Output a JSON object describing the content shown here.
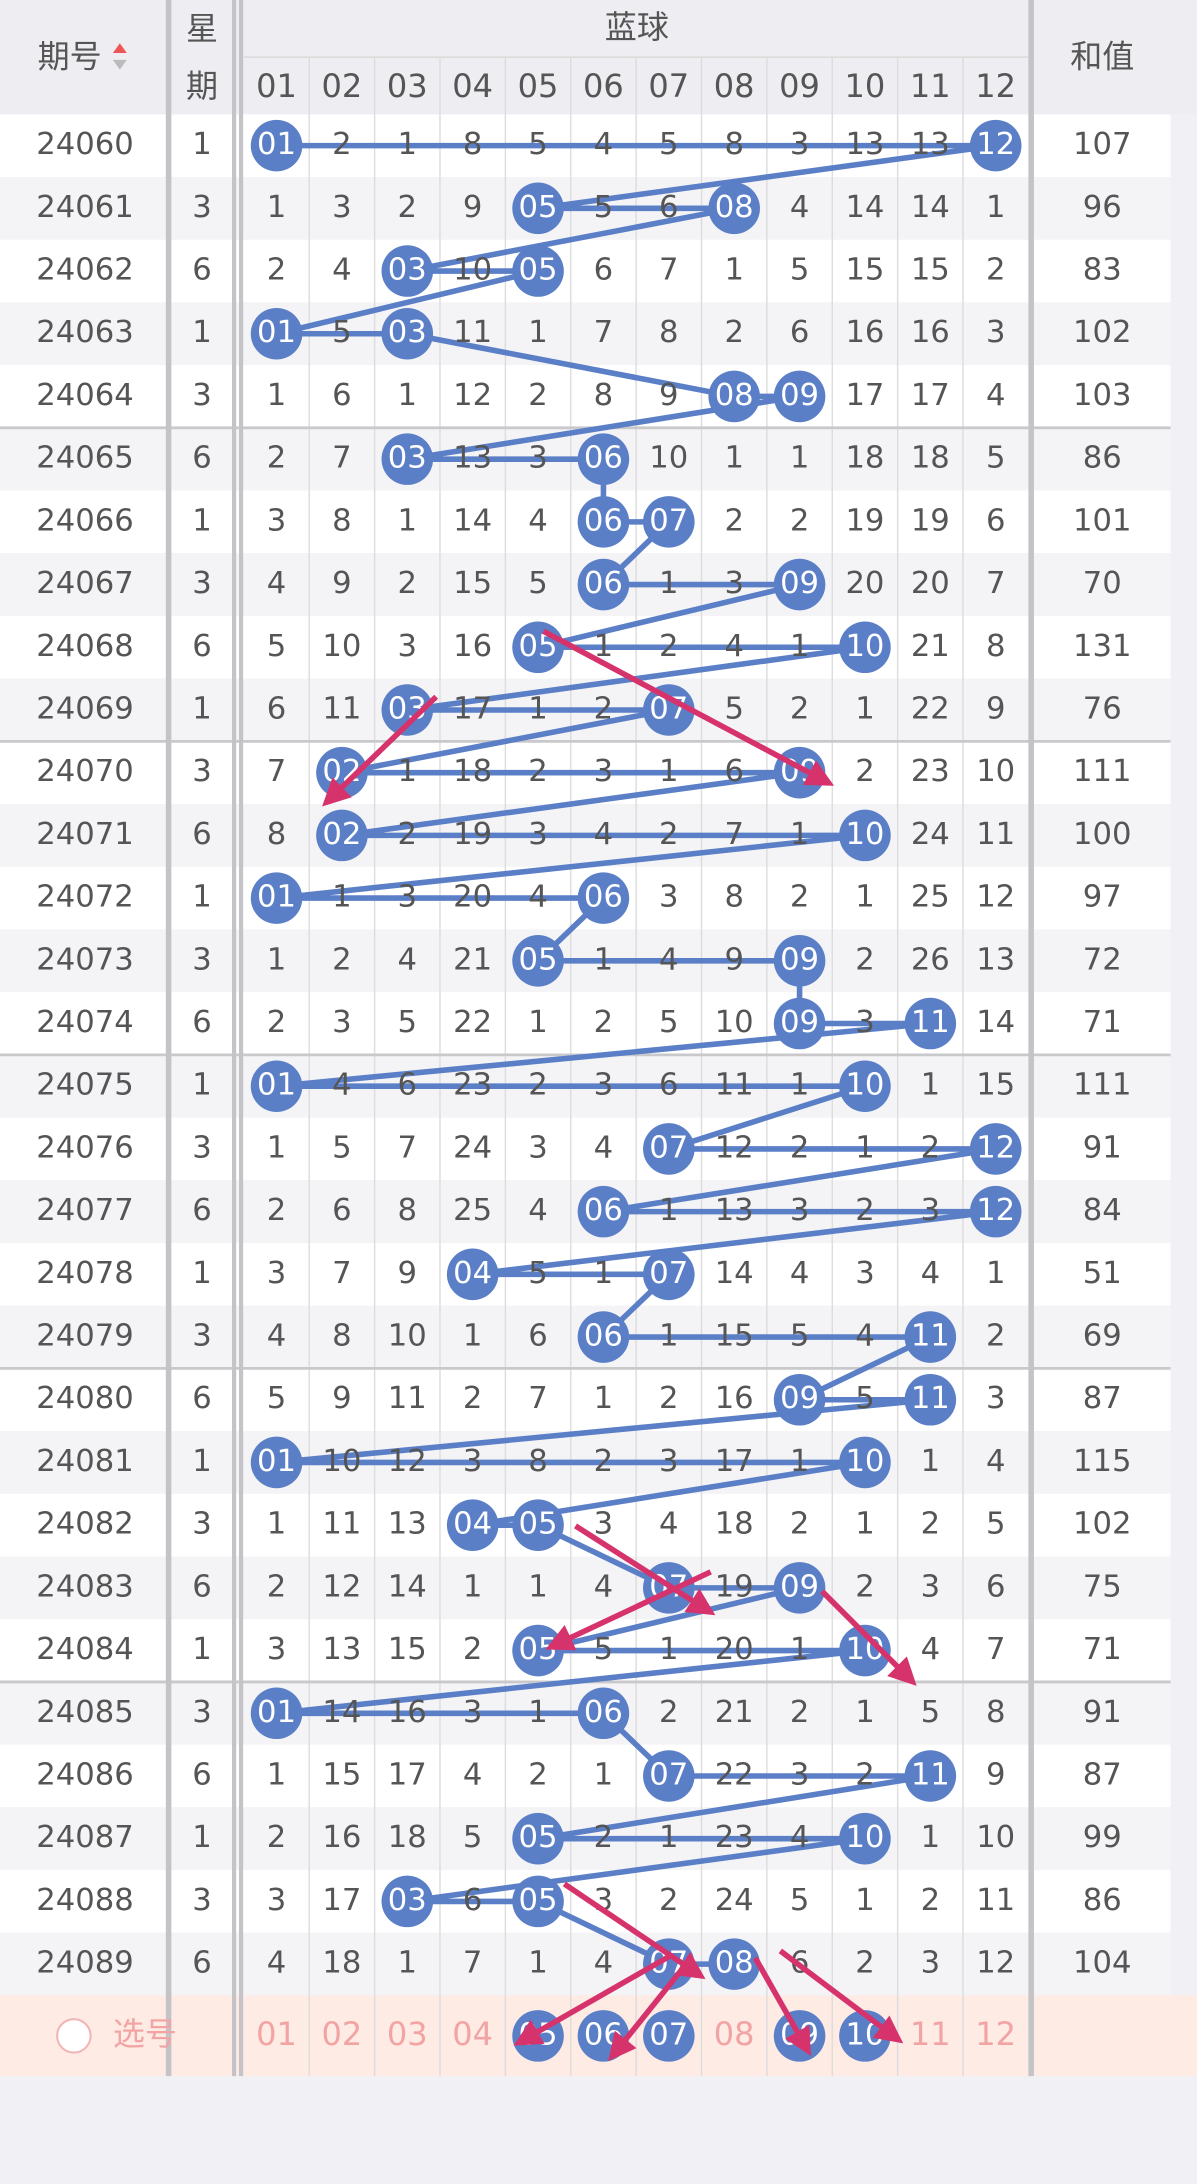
{
  "header": {
    "period": "期号",
    "weekday": [
      "星",
      "期"
    ],
    "blue": "蓝球",
    "sum": "和值",
    "columns": [
      "01",
      "02",
      "03",
      "04",
      "05",
      "06",
      "07",
      "08",
      "09",
      "10",
      "11",
      "12"
    ]
  },
  "rows": [
    {
      "period": "24060",
      "weekday": "1",
      "cells": [
        "01",
        "2",
        "1",
        "8",
        "5",
        "4",
        "5",
        "8",
        "3",
        "13",
        "13",
        "12"
      ],
      "hit": [
        true,
        false,
        false,
        false,
        false,
        false,
        false,
        false,
        false,
        false,
        false,
        true
      ],
      "sum": "107"
    },
    {
      "period": "24061",
      "weekday": "3",
      "cells": [
        "1",
        "3",
        "2",
        "9",
        "05",
        "5",
        "6",
        "08",
        "4",
        "14",
        "14",
        "1"
      ],
      "hit": [
        false,
        false,
        false,
        false,
        true,
        false,
        false,
        true,
        false,
        false,
        false,
        false
      ],
      "sum": "96"
    },
    {
      "period": "24062",
      "weekday": "6",
      "cells": [
        "2",
        "4",
        "03",
        "10",
        "05",
        "6",
        "7",
        "1",
        "5",
        "15",
        "15",
        "2"
      ],
      "hit": [
        false,
        false,
        true,
        false,
        true,
        false,
        false,
        false,
        false,
        false,
        false,
        false
      ],
      "sum": "83"
    },
    {
      "period": "24063",
      "weekday": "1",
      "cells": [
        "01",
        "5",
        "03",
        "11",
        "1",
        "7",
        "8",
        "2",
        "6",
        "16",
        "16",
        "3"
      ],
      "hit": [
        true,
        false,
        true,
        false,
        false,
        false,
        false,
        false,
        false,
        false,
        false,
        false
      ],
      "sum": "102"
    },
    {
      "period": "24064",
      "weekday": "3",
      "cells": [
        "1",
        "6",
        "1",
        "12",
        "2",
        "8",
        "9",
        "08",
        "09",
        "17",
        "17",
        "4"
      ],
      "hit": [
        false,
        false,
        false,
        false,
        false,
        false,
        false,
        true,
        true,
        false,
        false,
        false
      ],
      "sum": "103"
    },
    {
      "period": "24065",
      "weekday": "6",
      "cells": [
        "2",
        "7",
        "03",
        "13",
        "3",
        "06",
        "10",
        "1",
        "1",
        "18",
        "18",
        "5"
      ],
      "hit": [
        false,
        false,
        true,
        false,
        false,
        true,
        false,
        false,
        false,
        false,
        false,
        false
      ],
      "sum": "86"
    },
    {
      "period": "24066",
      "weekday": "1",
      "cells": [
        "3",
        "8",
        "1",
        "14",
        "4",
        "06",
        "07",
        "2",
        "2",
        "19",
        "19",
        "6"
      ],
      "hit": [
        false,
        false,
        false,
        false,
        false,
        true,
        true,
        false,
        false,
        false,
        false,
        false
      ],
      "sum": "101"
    },
    {
      "period": "24067",
      "weekday": "3",
      "cells": [
        "4",
        "9",
        "2",
        "15",
        "5",
        "06",
        "1",
        "3",
        "09",
        "20",
        "20",
        "7"
      ],
      "hit": [
        false,
        false,
        false,
        false,
        false,
        true,
        false,
        false,
        true,
        false,
        false,
        false
      ],
      "sum": "70"
    },
    {
      "period": "24068",
      "weekday": "6",
      "cells": [
        "5",
        "10",
        "3",
        "16",
        "05",
        "1",
        "2",
        "4",
        "1",
        "10",
        "21",
        "8"
      ],
      "hit": [
        false,
        false,
        false,
        false,
        true,
        false,
        false,
        false,
        false,
        true,
        false,
        false
      ],
      "sum": "131"
    },
    {
      "period": "24069",
      "weekday": "1",
      "cells": [
        "6",
        "11",
        "03",
        "17",
        "1",
        "2",
        "07",
        "5",
        "2",
        "1",
        "22",
        "9"
      ],
      "hit": [
        false,
        false,
        true,
        false,
        false,
        false,
        true,
        false,
        false,
        false,
        false,
        false
      ],
      "sum": "76"
    },
    {
      "period": "24070",
      "weekday": "3",
      "cells": [
        "7",
        "02",
        "1",
        "18",
        "2",
        "3",
        "1",
        "6",
        "09",
        "2",
        "23",
        "10"
      ],
      "hit": [
        false,
        true,
        false,
        false,
        false,
        false,
        false,
        false,
        true,
        false,
        false,
        false
      ],
      "sum": "111"
    },
    {
      "period": "24071",
      "weekday": "6",
      "cells": [
        "8",
        "02",
        "2",
        "19",
        "3",
        "4",
        "2",
        "7",
        "1",
        "10",
        "24",
        "11"
      ],
      "hit": [
        false,
        true,
        false,
        false,
        false,
        false,
        false,
        false,
        false,
        true,
        false,
        false
      ],
      "sum": "100"
    },
    {
      "period": "24072",
      "weekday": "1",
      "cells": [
        "01",
        "1",
        "3",
        "20",
        "4",
        "06",
        "3",
        "8",
        "2",
        "1",
        "25",
        "12"
      ],
      "hit": [
        true,
        false,
        false,
        false,
        false,
        true,
        false,
        false,
        false,
        false,
        false,
        false
      ],
      "sum": "97"
    },
    {
      "period": "24073",
      "weekday": "3",
      "cells": [
        "1",
        "2",
        "4",
        "21",
        "05",
        "1",
        "4",
        "9",
        "09",
        "2",
        "26",
        "13"
      ],
      "hit": [
        false,
        false,
        false,
        false,
        true,
        false,
        false,
        false,
        true,
        false,
        false,
        false
      ],
      "sum": "72"
    },
    {
      "period": "24074",
      "weekday": "6",
      "cells": [
        "2",
        "3",
        "5",
        "22",
        "1",
        "2",
        "5",
        "10",
        "09",
        "3",
        "11",
        "14"
      ],
      "hit": [
        false,
        false,
        false,
        false,
        false,
        false,
        false,
        false,
        true,
        false,
        true,
        false
      ],
      "sum": "71"
    },
    {
      "period": "24075",
      "weekday": "1",
      "cells": [
        "01",
        "4",
        "6",
        "23",
        "2",
        "3",
        "6",
        "11",
        "1",
        "10",
        "1",
        "15"
      ],
      "hit": [
        true,
        false,
        false,
        false,
        false,
        false,
        false,
        false,
        false,
        true,
        false,
        false
      ],
      "sum": "111"
    },
    {
      "period": "24076",
      "weekday": "3",
      "cells": [
        "1",
        "5",
        "7",
        "24",
        "3",
        "4",
        "07",
        "12",
        "2",
        "1",
        "2",
        "12"
      ],
      "hit": [
        false,
        false,
        false,
        false,
        false,
        false,
        true,
        false,
        false,
        false,
        false,
        true
      ],
      "sum": "91"
    },
    {
      "period": "24077",
      "weekday": "6",
      "cells": [
        "2",
        "6",
        "8",
        "25",
        "4",
        "06",
        "1",
        "13",
        "3",
        "2",
        "3",
        "12"
      ],
      "hit": [
        false,
        false,
        false,
        false,
        false,
        true,
        false,
        false,
        false,
        false,
        false,
        true
      ],
      "sum": "84"
    },
    {
      "period": "24078",
      "weekday": "1",
      "cells": [
        "3",
        "7",
        "9",
        "04",
        "5",
        "1",
        "07",
        "14",
        "4",
        "3",
        "4",
        "1"
      ],
      "hit": [
        false,
        false,
        false,
        true,
        false,
        false,
        true,
        false,
        false,
        false,
        false,
        false
      ],
      "sum": "51"
    },
    {
      "period": "24079",
      "weekday": "3",
      "cells": [
        "4",
        "8",
        "10",
        "1",
        "6",
        "06",
        "1",
        "15",
        "5",
        "4",
        "11",
        "2"
      ],
      "hit": [
        false,
        false,
        false,
        false,
        false,
        true,
        false,
        false,
        false,
        false,
        true,
        false
      ],
      "sum": "69"
    },
    {
      "period": "24080",
      "weekday": "6",
      "cells": [
        "5",
        "9",
        "11",
        "2",
        "7",
        "1",
        "2",
        "16",
        "09",
        "5",
        "11",
        "3"
      ],
      "hit": [
        false,
        false,
        false,
        false,
        false,
        false,
        false,
        false,
        true,
        false,
        true,
        false
      ],
      "sum": "87"
    },
    {
      "period": "24081",
      "weekday": "1",
      "cells": [
        "01",
        "10",
        "12",
        "3",
        "8",
        "2",
        "3",
        "17",
        "1",
        "10",
        "1",
        "4"
      ],
      "hit": [
        true,
        false,
        false,
        false,
        false,
        false,
        false,
        false,
        false,
        true,
        false,
        false
      ],
      "sum": "115"
    },
    {
      "period": "24082",
      "weekday": "3",
      "cells": [
        "1",
        "11",
        "13",
        "04",
        "05",
        "3",
        "4",
        "18",
        "2",
        "1",
        "2",
        "5"
      ],
      "hit": [
        false,
        false,
        false,
        true,
        true,
        false,
        false,
        false,
        false,
        false,
        false,
        false
      ],
      "sum": "102"
    },
    {
      "period": "24083",
      "weekday": "6",
      "cells": [
        "2",
        "12",
        "14",
        "1",
        "1",
        "4",
        "07",
        "19",
        "09",
        "2",
        "3",
        "6"
      ],
      "hit": [
        false,
        false,
        false,
        false,
        false,
        false,
        true,
        false,
        true,
        false,
        false,
        false
      ],
      "sum": "75"
    },
    {
      "period": "24084",
      "weekday": "1",
      "cells": [
        "3",
        "13",
        "15",
        "2",
        "05",
        "5",
        "1",
        "20",
        "1",
        "10",
        "4",
        "7"
      ],
      "hit": [
        false,
        false,
        false,
        false,
        true,
        false,
        false,
        false,
        false,
        true,
        false,
        false
      ],
      "sum": "71"
    },
    {
      "period": "24085",
      "weekday": "3",
      "cells": [
        "01",
        "14",
        "16",
        "3",
        "1",
        "06",
        "2",
        "21",
        "2",
        "1",
        "5",
        "8"
      ],
      "hit": [
        true,
        false,
        false,
        false,
        false,
        true,
        false,
        false,
        false,
        false,
        false,
        false
      ],
      "sum": "91"
    },
    {
      "period": "24086",
      "weekday": "6",
      "cells": [
        "1",
        "15",
        "17",
        "4",
        "2",
        "1",
        "07",
        "22",
        "3",
        "2",
        "11",
        "9"
      ],
      "hit": [
        false,
        false,
        false,
        false,
        false,
        false,
        true,
        false,
        false,
        false,
        true,
        false
      ],
      "sum": "87"
    },
    {
      "period": "24087",
      "weekday": "1",
      "cells": [
        "2",
        "16",
        "18",
        "5",
        "05",
        "2",
        "1",
        "23",
        "4",
        "10",
        "1",
        "10"
      ],
      "hit": [
        false,
        false,
        false,
        false,
        true,
        false,
        false,
        false,
        false,
        true,
        false,
        false
      ],
      "sum": "99"
    },
    {
      "period": "24088",
      "weekday": "3",
      "cells": [
        "3",
        "17",
        "03",
        "6",
        "05",
        "3",
        "2",
        "24",
        "5",
        "1",
        "2",
        "11"
      ],
      "hit": [
        false,
        false,
        true,
        false,
        true,
        false,
        false,
        false,
        false,
        false,
        false,
        false
      ],
      "sum": "86"
    },
    {
      "period": "24089",
      "weekday": "6",
      "cells": [
        "4",
        "18",
        "1",
        "7",
        "1",
        "4",
        "07",
        "08",
        "6",
        "2",
        "3",
        "12"
      ],
      "hit": [
        false,
        false,
        false,
        false,
        false,
        false,
        true,
        true,
        false,
        false,
        false,
        false
      ],
      "sum": "104"
    }
  ],
  "footer": {
    "label": "选号",
    "numbers": [
      "01",
      "02",
      "03",
      "04",
      "05",
      "06",
      "07",
      "08",
      "09",
      "10",
      "11",
      "12"
    ],
    "selected": [
      false,
      false,
      false,
      false,
      true,
      true,
      true,
      false,
      true,
      true,
      false,
      false
    ]
  }
}
